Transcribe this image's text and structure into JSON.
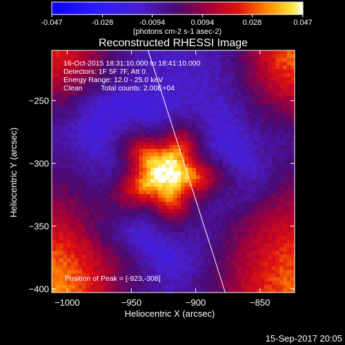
{
  "chart_data": {
    "type": "heatmap",
    "title": "Reconstructed RHESSI Image",
    "xlabel": "Heliocentric X (arcsec)",
    "ylabel": "Heliocentric Y (arcsec)",
    "xlim": [
      -1012,
      -823
    ],
    "ylim": [
      -403,
      -210
    ],
    "x_ticks": [
      -1000,
      -950,
      -900,
      -850
    ],
    "y_ticks": [
      -250,
      -300,
      -350,
      -400
    ],
    "colorbar": {
      "range": [
        -0.047,
        0.047
      ],
      "tick_values": [
        -0.047,
        -0.028,
        -0.0094,
        0.0094,
        0.028,
        0.047
      ],
      "tick_labels": [
        "-0.047",
        "-0.028",
        "-0.0094",
        "0.0094",
        "0.028",
        "0.047"
      ],
      "unit_label": "(photons cm-2 s-1 asec-2)"
    },
    "annotations": {
      "time_range": "16-Oct-2015 18:31:10.000 to 18:41:10.000",
      "detectors": "Detectors: 1F 5F 7F, Att 0",
      "energy_range": "Energy Range: 12.0 - 25.0 keV",
      "method": "Clean",
      "total_counts": "Total counts: 2.00E+04",
      "peak_position": "Position of Peak = [-923,-308]"
    },
    "peak": {
      "x": -923,
      "y": -308,
      "value": 0.047
    },
    "limb_line": [
      [
        -937,
        -210
      ],
      [
        -877,
        -403
      ]
    ],
    "background_level": -0.012,
    "corner_level": 0.034,
    "grid": false
  },
  "footer_date": "15-Sep-2017 20:05"
}
